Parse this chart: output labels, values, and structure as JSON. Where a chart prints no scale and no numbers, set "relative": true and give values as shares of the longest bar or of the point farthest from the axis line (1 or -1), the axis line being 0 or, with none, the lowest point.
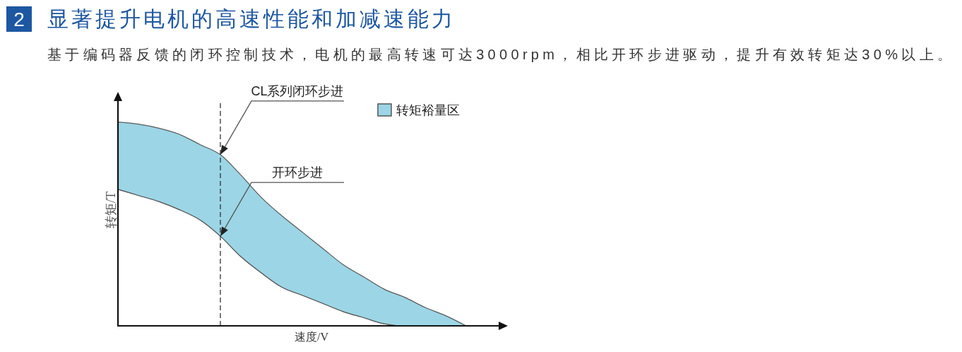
{
  "chart_data": {
    "type": "area",
    "title": "显著提升电机的高速性能和加减速能力",
    "subtitle": "基于编码器反馈的闭环控制技术，电机的最高转速可达3000rpm，相比开环步进驱动，提升有效转矩达30%以上。",
    "xlabel": "速度/V",
    "ylabel": "转矩/T",
    "relative": true,
    "stacked": true,
    "categories": [
      null,
      null,
      null,
      null,
      null,
      null,
      null,
      null,
      null,
      null,
      null,
      null,
      null,
      null,
      null,
      null,
      null,
      null
    ],
    "series": [
      {
        "color": "#ffffff",
        "values": [
          0.67,
          0.64,
          0.61,
          0.57,
          0.52,
          0.44,
          0.34,
          0.26,
          0.19,
          0.15,
          0.11,
          0.07,
          0.04,
          0.01,
          0,
          0,
          0,
          0
        ]
      },
      {
        "name": "转矩裕量区",
        "color": "#9bd5e6",
        "values": [
          0.33,
          0.35,
          0.36,
          0.37,
          0.37,
          0.4,
          0.4,
          0.37,
          0.35,
          0.31,
          0.27,
          0.23,
          0.2,
          0.17,
          0.14,
          0.09,
          0.05,
          0
        ]
      }
    ],
    "annotations": [
      "2",
      "CL系列闭环步进",
      "开环步进"
    ],
    "legend": "top right"
  }
}
